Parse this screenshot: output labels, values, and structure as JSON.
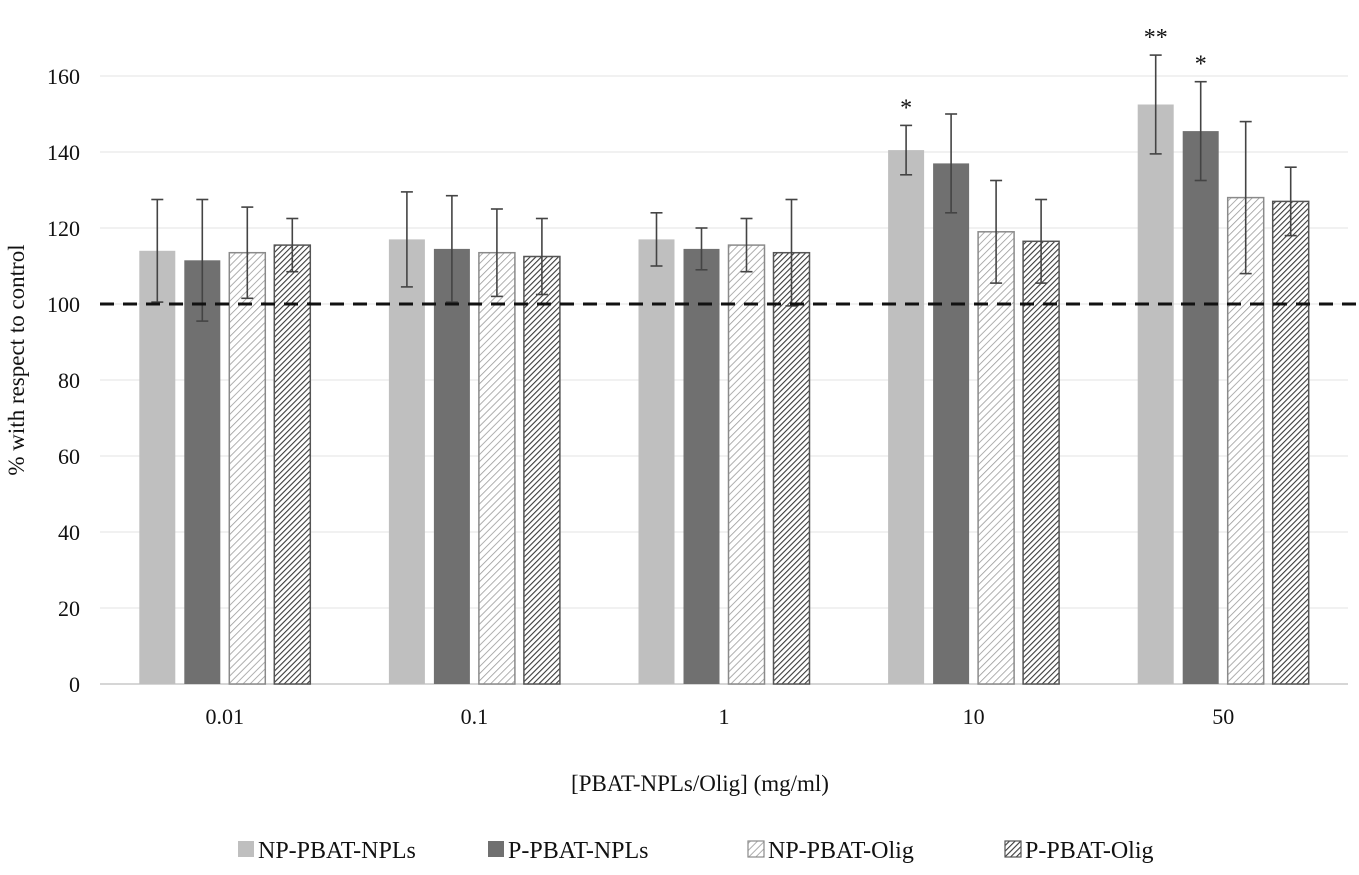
{
  "chart_data": {
    "type": "bar",
    "title": "",
    "xlabel": "[PBAT-NPLs/Olig]  (mg/ml)",
    "ylabel": "% with respect to control",
    "ylim": [
      0,
      160
    ],
    "yticks": [
      0,
      20,
      40,
      60,
      80,
      100,
      120,
      140,
      160
    ],
    "categories": [
      "0.01",
      "0.1",
      "1",
      "10",
      "50"
    ],
    "reference_line": {
      "y": 100,
      "style": "dashed"
    },
    "legend_position": "bottom",
    "grid": true,
    "series": [
      {
        "name": "NP-PBAT-NPLs",
        "color": "#bfbfbf",
        "pattern": "solid",
        "values": [
          114,
          117,
          117,
          140.5,
          152.5
        ],
        "errors": [
          13.5,
          12.5,
          7,
          6.5,
          13
        ],
        "significance": [
          "",
          "",
          "",
          "*",
          "**"
        ]
      },
      {
        "name": "P-PBAT-NPLs",
        "color": "#707070",
        "pattern": "solid",
        "values": [
          111.5,
          114.5,
          114.5,
          137,
          145.5
        ],
        "errors": [
          16,
          14,
          5.5,
          13,
          13
        ],
        "significance": [
          "",
          "",
          "",
          "",
          "*"
        ]
      },
      {
        "name": "NP-PBAT-Olig",
        "color": "#9a9a9a",
        "pattern": "light-diagonal",
        "values": [
          113.5,
          113.5,
          115.5,
          119,
          128
        ],
        "errors": [
          12,
          11.5,
          7,
          13.5,
          20
        ],
        "significance": [
          "",
          "",
          "",
          "",
          ""
        ]
      },
      {
        "name": "P-PBAT-Olig",
        "color": "#555555",
        "pattern": "dense-diagonal",
        "values": [
          115.5,
          112.5,
          113.5,
          116.5,
          127
        ],
        "errors": [
          7,
          10,
          14,
          11,
          9
        ],
        "significance": [
          "",
          "",
          "",
          "",
          ""
        ]
      }
    ]
  }
}
